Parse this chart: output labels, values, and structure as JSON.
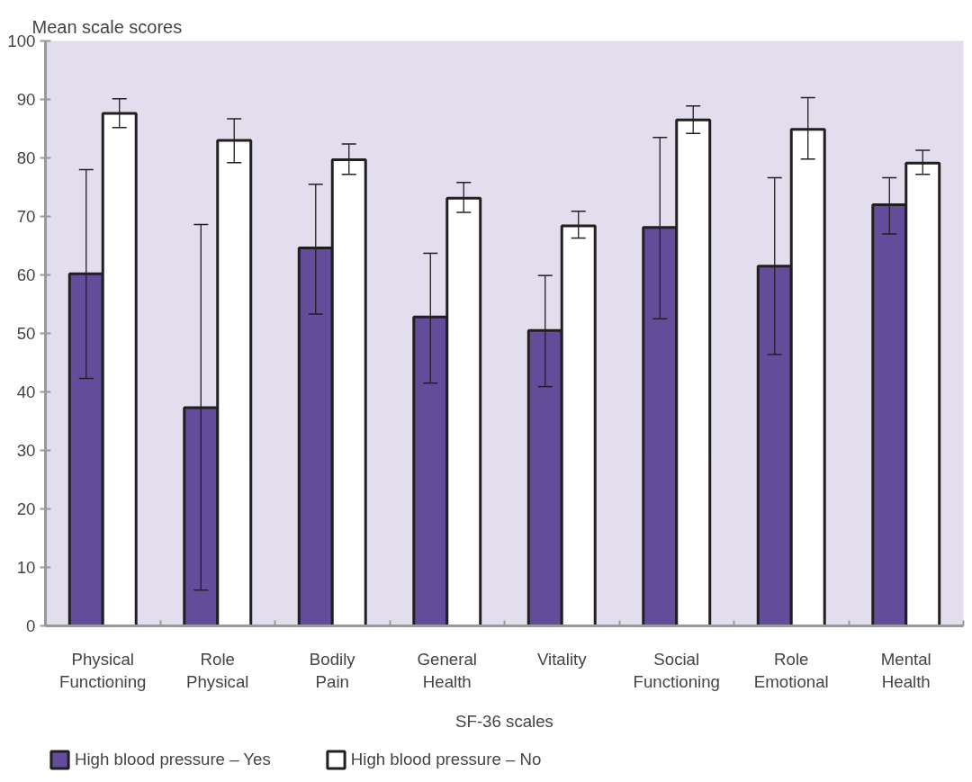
{
  "chart_data": {
    "type": "bar",
    "ylabel": "Mean scale scores",
    "xlabel": "SF-36 scales",
    "categories": [
      "Physical Functioning",
      "Role Physical",
      "Bodily Pain",
      "General Health",
      "Vitality",
      "Social Functioning",
      "Role Emotional",
      "Mental Health"
    ],
    "series": [
      {
        "name": "High blood pressure – Yes",
        "color": "#634c99",
        "values": [
          60.2,
          37.3,
          64.6,
          52.8,
          50.5,
          68.1,
          61.5,
          72.0
        ],
        "errors": [
          [
            42.3,
            78.0
          ],
          [
            6.1,
            68.6
          ],
          [
            53.3,
            75.5
          ],
          [
            41.5,
            63.7
          ],
          [
            40.9,
            59.9
          ],
          [
            52.5,
            83.5
          ],
          [
            46.4,
            76.6
          ],
          [
            67.0,
            76.6
          ]
        ]
      },
      {
        "name": "High blood pressure – No",
        "color": "#ffffff",
        "values": [
          87.6,
          83.0,
          79.7,
          73.1,
          68.4,
          86.5,
          84.9,
          79.1
        ],
        "errors": [
          [
            85.2,
            90.1
          ],
          [
            79.2,
            86.7
          ],
          [
            77.2,
            82.4
          ],
          [
            70.7,
            75.8
          ],
          [
            66.3,
            70.9
          ],
          [
            84.2,
            88.9
          ],
          [
            79.8,
            90.3
          ],
          [
            77.2,
            81.3
          ]
        ]
      }
    ],
    "ylim": [
      0,
      100
    ],
    "yticks": [
      0,
      10,
      20,
      30,
      40,
      50,
      60,
      70,
      80,
      90,
      100
    ],
    "grid": false,
    "legend": "bottom"
  }
}
